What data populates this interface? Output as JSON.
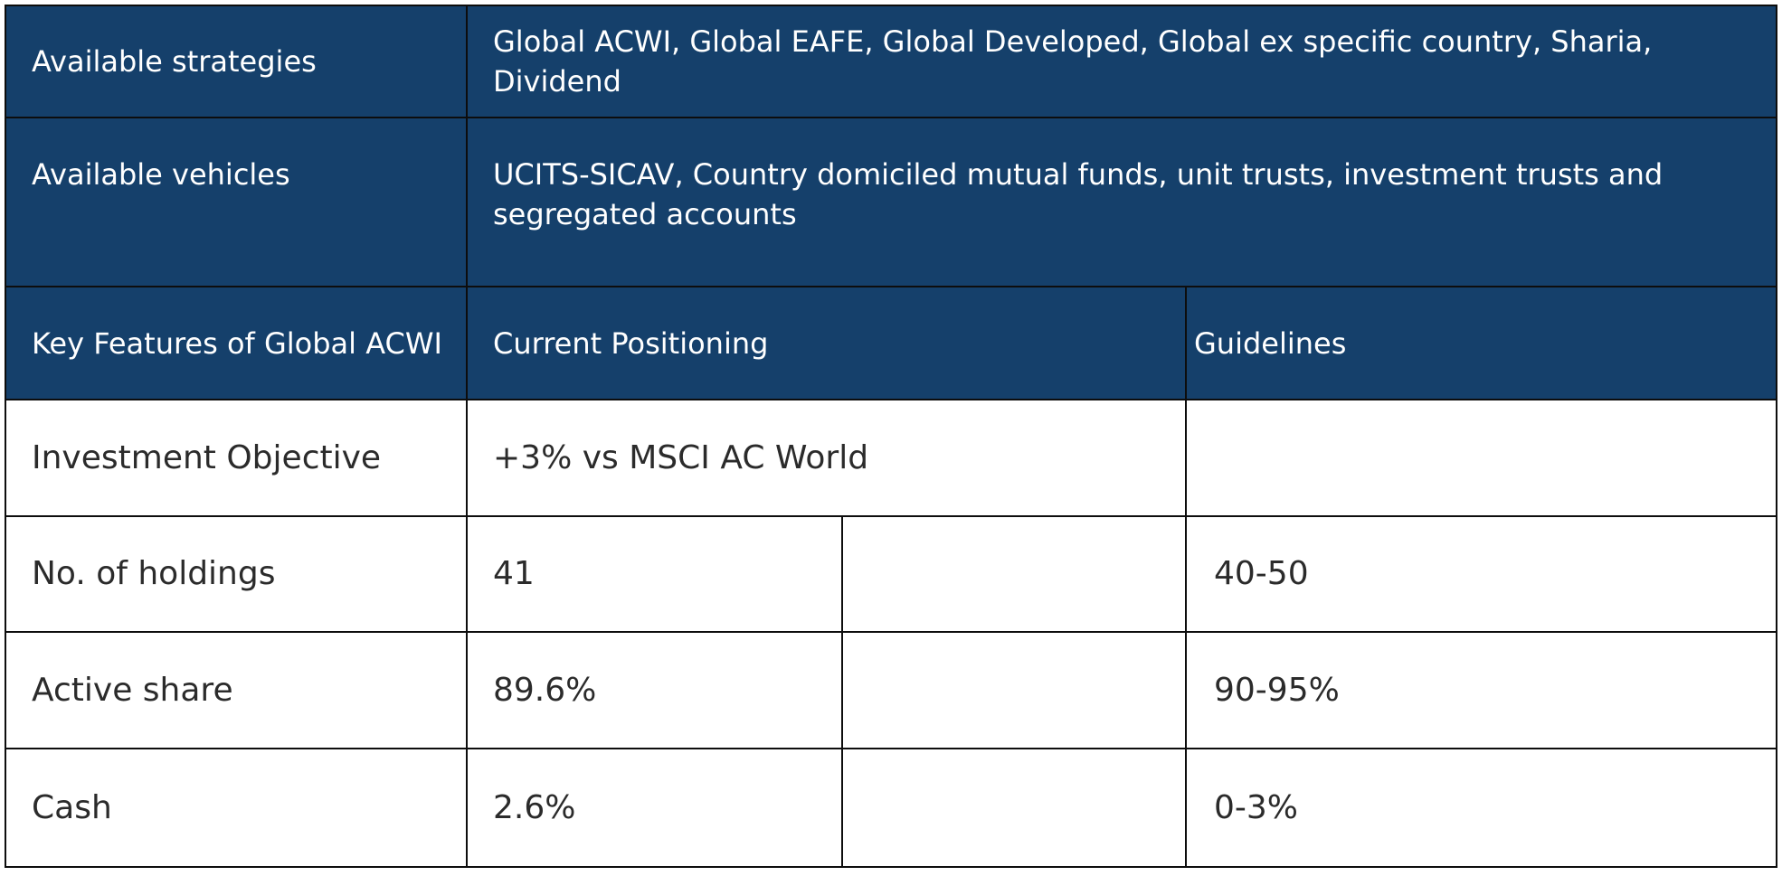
{
  "header_rows": [
    {
      "label": "Available strategies",
      "value": "Global ACWI, Global EAFE, Global Developed, Global ex specific country, Sharia, Dividend"
    },
    {
      "label": "Available vehicles",
      "value": "UCITS-SICAV, Country domiciled mutual funds, unit trusts, investment trusts and segregated accounts"
    }
  ],
  "column_headers": {
    "features": "Key Features of Global ACWI",
    "current": "Current Positioning",
    "guidelines": "Guidelines"
  },
  "objective_row": {
    "label": "Investment Objective",
    "current": "+3% vs MSCI AC World",
    "guidelines": ""
  },
  "rows": [
    {
      "label": "No. of holdings",
      "current": "41",
      "guidelines": "40-50"
    },
    {
      "label": "Active share",
      "current": "89.6%",
      "guidelines": "90-95%"
    },
    {
      "label": "Cash",
      "current": "2.6%",
      "guidelines": "0-3%"
    }
  ],
  "colors": {
    "header_background": "#15406b",
    "header_text": "#ffffff",
    "body_text": "#2b2b2b",
    "border": "#0d0d0d"
  }
}
